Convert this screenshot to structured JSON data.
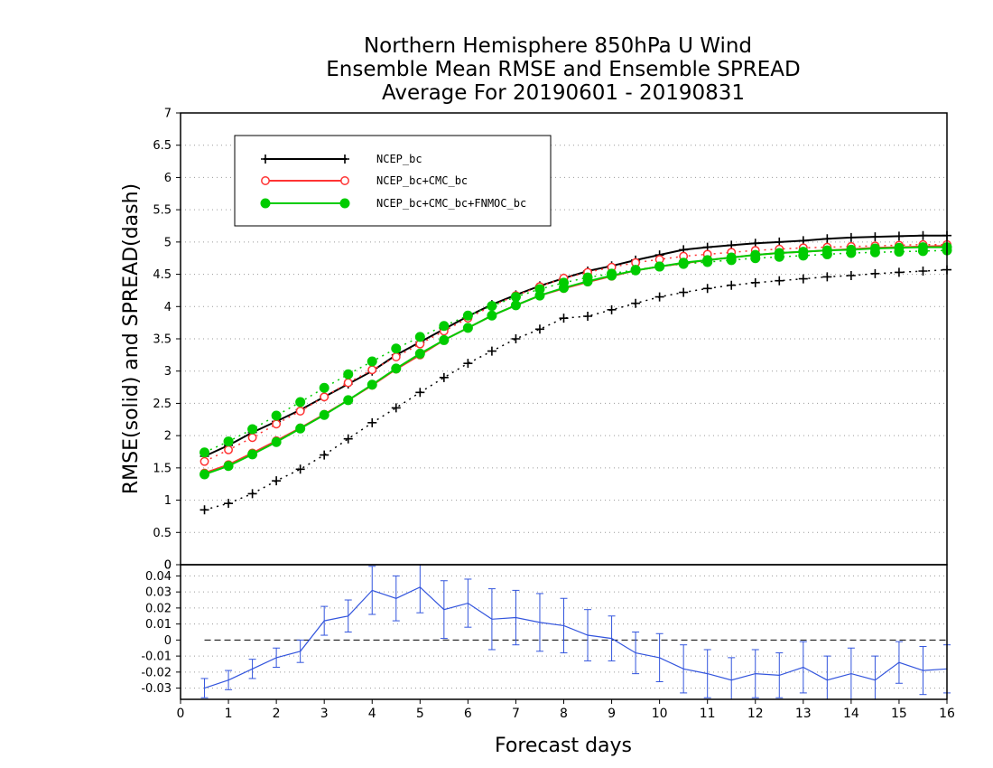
{
  "chart_data": [
    {
      "type": "line",
      "panel": "upper",
      "title": [
        "Northern Hemisphere 850hPa U Wind",
        "Ensemble Mean RMSE and Ensemble SPREAD",
        "Average For 20190601 - 20190831"
      ],
      "ylabel": "RMSE(solid) and SPREAD(dash)",
      "xlim": [
        0,
        16
      ],
      "ylim": [
        0,
        7
      ],
      "yticks": [
        "0",
        "0.5",
        "1",
        "1.5",
        "2",
        "2.5",
        "3",
        "3.5",
        "4",
        "4.5",
        "5",
        "5.5",
        "6",
        "6.5",
        "7"
      ],
      "grid": true,
      "legend_position": "top-left",
      "x": [
        0.5,
        1.0,
        1.5,
        2.0,
        2.5,
        3.0,
        3.5,
        4.0,
        4.5,
        5.0,
        5.5,
        6.0,
        6.5,
        7.0,
        7.5,
        8.0,
        8.5,
        9.0,
        9.5,
        10.0,
        10.5,
        11.0,
        11.5,
        12.0,
        12.5,
        13.0,
        13.5,
        14.0,
        14.5,
        15.0,
        15.5,
        16.0
      ],
      "series": [
        {
          "name": "NCEP_bc",
          "kind": "rmse",
          "color": "#000000",
          "marker": "plus",
          "values": [
            1.68,
            1.85,
            2.05,
            2.22,
            2.4,
            2.6,
            2.8,
            3.0,
            3.25,
            3.45,
            3.65,
            3.85,
            4.03,
            4.18,
            4.32,
            4.44,
            4.55,
            4.63,
            4.72,
            4.8,
            4.88,
            4.92,
            4.95,
            4.98,
            5.0,
            5.02,
            5.05,
            5.07,
            5.08,
            5.09,
            5.1,
            5.1
          ]
        },
        {
          "name": "NCEP_bc",
          "kind": "spread",
          "color": "#000000",
          "marker": "plus",
          "values": [
            0.85,
            0.95,
            1.1,
            1.3,
            1.48,
            1.7,
            1.95,
            2.2,
            2.43,
            2.67,
            2.9,
            3.12,
            3.31,
            3.5,
            3.65,
            3.82,
            3.85,
            3.95,
            4.05,
            4.15,
            4.22,
            4.28,
            4.33,
            4.37,
            4.4,
            4.43,
            4.46,
            4.48,
            4.51,
            4.53,
            4.55,
            4.57
          ]
        },
        {
          "name": "NCEP_bc+CMC_bc",
          "kind": "rmse",
          "color": "#ff3333",
          "marker": "circle-open",
          "values": [
            1.42,
            1.55,
            1.73,
            1.92,
            2.12,
            2.33,
            2.55,
            2.78,
            3.03,
            3.25,
            3.48,
            3.67,
            3.86,
            4.02,
            4.17,
            4.28,
            4.38,
            4.47,
            4.56,
            4.62,
            4.67,
            4.72,
            4.76,
            4.8,
            4.83,
            4.85,
            4.87,
            4.89,
            4.91,
            4.92,
            4.93,
            4.94
          ]
        },
        {
          "name": "NCEP_bc+CMC_bc",
          "kind": "spread",
          "color": "#ff3333",
          "marker": "circle-open",
          "values": [
            1.6,
            1.78,
            1.97,
            2.18,
            2.38,
            2.6,
            2.82,
            3.02,
            3.22,
            3.42,
            3.62,
            3.82,
            4.01,
            4.17,
            4.31,
            4.44,
            4.53,
            4.61,
            4.68,
            4.73,
            4.78,
            4.81,
            4.84,
            4.87,
            4.89,
            4.91,
            4.92,
            4.93,
            4.94,
            4.95,
            4.96,
            4.96
          ]
        },
        {
          "name": "NCEP_bc+CMC_bc+FNMOC_bc",
          "kind": "rmse",
          "color": "#00cc00",
          "marker": "circle-filled",
          "values": [
            1.4,
            1.53,
            1.71,
            1.9,
            2.11,
            2.32,
            2.55,
            2.79,
            3.04,
            3.27,
            3.48,
            3.67,
            3.86,
            4.02,
            4.17,
            4.29,
            4.39,
            4.48,
            4.56,
            4.62,
            4.68,
            4.72,
            4.76,
            4.8,
            4.83,
            4.85,
            4.87,
            4.88,
            4.9,
            4.91,
            4.92,
            4.92
          ]
        },
        {
          "name": "NCEP_bc+CMC_bc+FNMOC_bc",
          "kind": "spread",
          "color": "#00cc00",
          "marker": "circle-filled",
          "values": [
            1.74,
            1.91,
            2.1,
            2.31,
            2.52,
            2.74,
            2.95,
            3.15,
            3.35,
            3.53,
            3.7,
            3.86,
            4.01,
            4.15,
            4.27,
            4.37,
            4.45,
            4.51,
            4.57,
            4.62,
            4.66,
            4.69,
            4.72,
            4.75,
            4.77,
            4.79,
            4.81,
            4.83,
            4.84,
            4.85,
            4.86,
            4.87
          ]
        }
      ],
      "legend": [
        {
          "label": "NCEP_bc",
          "color": "#000000",
          "marker": "plus"
        },
        {
          "label": "NCEP_bc+CMC_bc",
          "color": "#ff3333",
          "marker": "circle-open"
        },
        {
          "label": "NCEP_bc+CMC_bc+FNMOC_bc",
          "color": "#00cc00",
          "marker": "circle-filled"
        }
      ]
    },
    {
      "type": "line",
      "panel": "lower",
      "xlabel": "Forecast days",
      "xticks": [
        "0",
        "1",
        "2",
        "3",
        "4",
        "5",
        "6",
        "7",
        "8",
        "9",
        "10",
        "11",
        "12",
        "13",
        "14",
        "15",
        "16"
      ],
      "xlim": [
        0,
        16
      ],
      "ylim": [
        -0.037,
        0.047
      ],
      "yticks": [
        "-0.03",
        "-0.02",
        "-0.01",
        "0",
        "0.01",
        "0.02",
        "0.03",
        "0.04"
      ],
      "top_tick_label": "0",
      "grid": true,
      "zero_line": "dashed",
      "color": "#3355dd",
      "x": [
        0.5,
        1.0,
        1.5,
        2.0,
        2.5,
        3.0,
        3.5,
        4.0,
        4.5,
        5.0,
        5.5,
        6.0,
        6.5,
        7.0,
        7.5,
        8.0,
        8.5,
        9.0,
        9.5,
        10.0,
        10.5,
        11.0,
        11.5,
        12.0,
        12.5,
        13.0,
        13.5,
        14.0,
        14.5,
        15.0,
        15.5,
        16.0
      ],
      "values": [
        -0.03,
        -0.025,
        -0.018,
        -0.011,
        -0.007,
        0.012,
        0.015,
        0.031,
        0.026,
        0.033,
        0.019,
        0.023,
        0.013,
        0.014,
        0.011,
        0.009,
        0.003,
        0.001,
        -0.008,
        -0.011,
        -0.018,
        -0.021,
        -0.025,
        -0.021,
        -0.022,
        -0.017,
        -0.025,
        -0.021,
        -0.025,
        -0.014,
        -0.019,
        -0.018
      ],
      "error": [
        0.006,
        0.006,
        0.006,
        0.006,
        0.007,
        0.009,
        0.01,
        0.015,
        0.014,
        0.016,
        0.018,
        0.015,
        0.019,
        0.017,
        0.018,
        0.017,
        0.016,
        0.014,
        0.013,
        0.015,
        0.015,
        0.015,
        0.014,
        0.015,
        0.014,
        0.016,
        0.015,
        0.016,
        0.015,
        0.013,
        0.015,
        0.015
      ]
    }
  ]
}
